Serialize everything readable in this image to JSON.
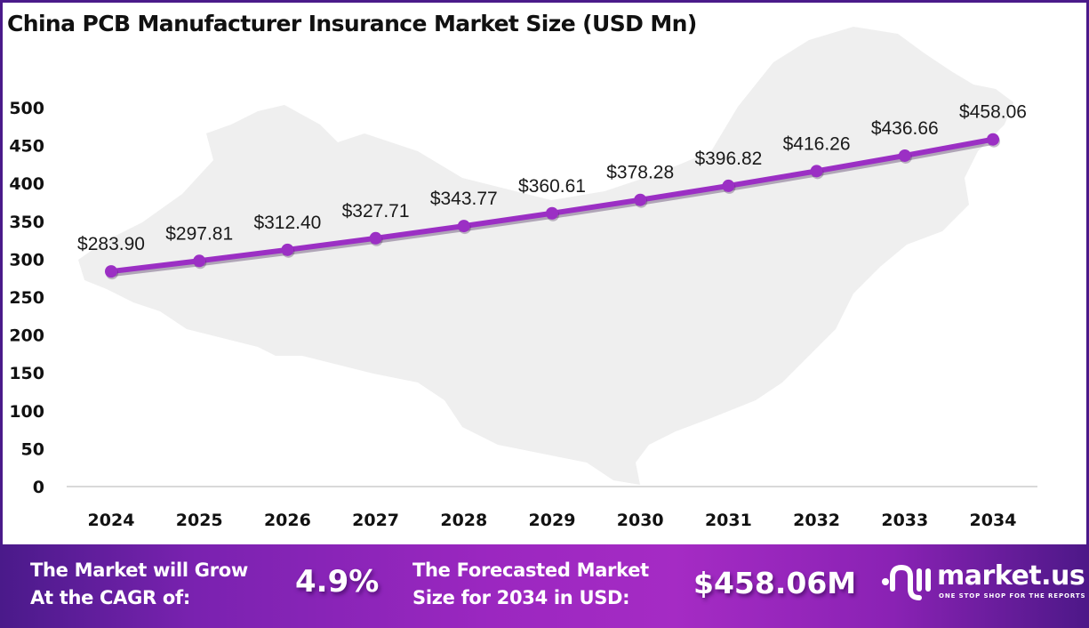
{
  "title": "China PCB Manufacturer Insurance Market Size (USD Mn)",
  "colors": {
    "line": "#9b2fc4",
    "border": "#4a1a8a",
    "map": "#efefef",
    "baseline": "#d9d9d9"
  },
  "chart_data": {
    "type": "line",
    "title": "China PCB Manufacturer Insurance Market Size (USD Mn)",
    "xlabel": "",
    "ylabel": "",
    "categories": [
      "2024",
      "2025",
      "2026",
      "2027",
      "2028",
      "2029",
      "2030",
      "2031",
      "2032",
      "2033",
      "2034"
    ],
    "series": [
      {
        "name": "Market Size (USD Mn)",
        "values": [
          283.9,
          297.81,
          312.4,
          327.71,
          343.77,
          360.61,
          378.28,
          396.82,
          416.26,
          436.66,
          458.06
        ]
      }
    ],
    "data_labels": [
      "$283.90",
      "$297.81",
      "$312.40",
      "$327.71",
      "$343.77",
      "$360.61",
      "$378.28",
      "$396.82",
      "$416.26",
      "$436.66",
      "$458.06"
    ],
    "yticks": [
      "0",
      "50",
      "100",
      "150",
      "200",
      "250",
      "300",
      "350",
      "400",
      "450",
      "500"
    ],
    "ylim": [
      0,
      500
    ],
    "grid": false,
    "legend": "none"
  },
  "footer": {
    "cagr_label_line1": "The Market will Grow",
    "cagr_label_line2": "At the CAGR of:",
    "cagr_value": "4.9%",
    "forecast_label_line1": "The Forecasted Market",
    "forecast_label_line2": "Size for 2034 in USD:",
    "forecast_value": "$458.06M",
    "brand_name": "market.us",
    "brand_tagline": "ONE STOP SHOP FOR THE REPORTS"
  }
}
